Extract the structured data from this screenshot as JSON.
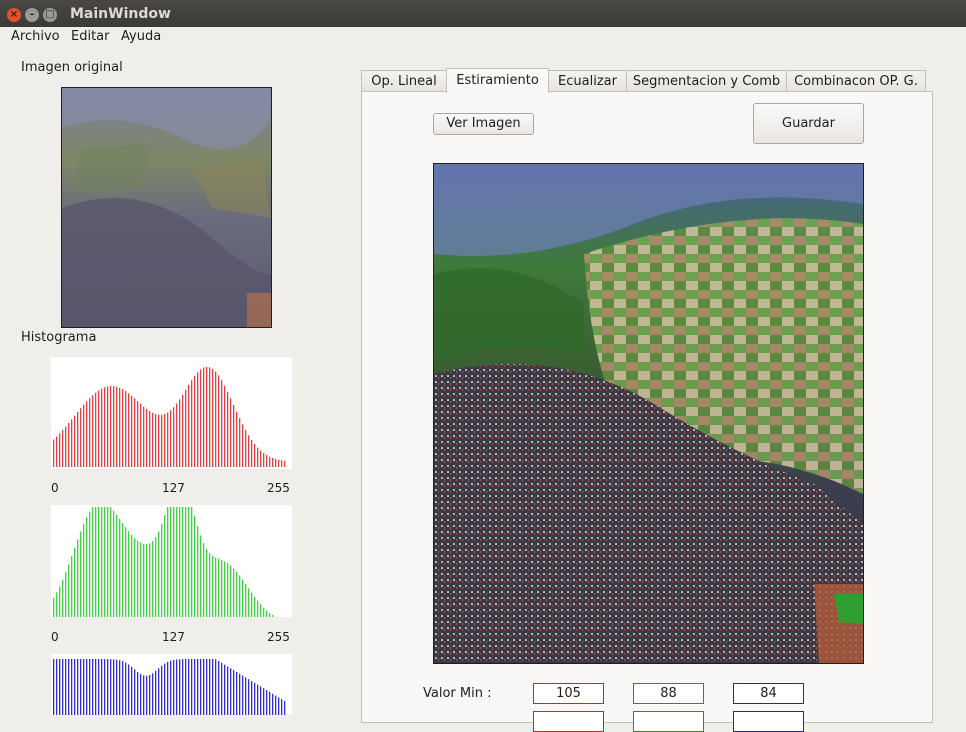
{
  "window": {
    "title": "MainWindow"
  },
  "menu": {
    "items": [
      "Archivo",
      "Editar",
      "Ayuda"
    ]
  },
  "left": {
    "original_label": "Imagen original",
    "histogram_label": "Histograma",
    "ticks": [
      "0",
      "127",
      "255"
    ]
  },
  "tabs": [
    "Op. Lineal",
    "Estiramiento",
    "Ecualizar",
    "Segmentacion y Comb",
    "Combinacon OP. G."
  ],
  "active_tab": 1,
  "panel": {
    "ver_imagen": "Ver Imagen",
    "guardar": "Guardar",
    "valor_min_label": "Valor Min :",
    "valor_min": {
      "r": "105",
      "g": "88",
      "b": "84"
    }
  },
  "colors": {
    "red": "#e04040",
    "green": "#3ed63e",
    "blue": "#3030d0"
  }
}
